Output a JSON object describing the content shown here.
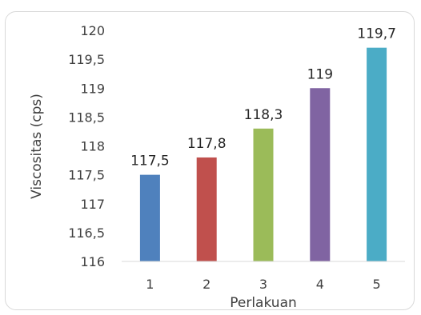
{
  "chart_data": {
    "type": "bar",
    "categories": [
      "1",
      "2",
      "3",
      "4",
      "5"
    ],
    "values": [
      117.5,
      117.8,
      118.3,
      119,
      119.7
    ],
    "value_labels": [
      "117,5",
      "117,8",
      "118,3",
      "119",
      "119,7"
    ],
    "colors": [
      "#4F81BD",
      "#C0504D",
      "#9BBB59",
      "#8064A2",
      "#4BACC6"
    ],
    "ylabel": "Viscositas (cps)",
    "xlabel": "Perlakuan",
    "ylim": [
      116,
      120
    ],
    "yticks": [
      116,
      116.5,
      117,
      117.5,
      118,
      118.5,
      119,
      119.5,
      120
    ],
    "ytick_labels": [
      "116",
      "116,5",
      "117",
      "117,5",
      "118",
      "118,5",
      "119",
      "119,5",
      "120"
    ],
    "grid": false,
    "legend": "none"
  }
}
